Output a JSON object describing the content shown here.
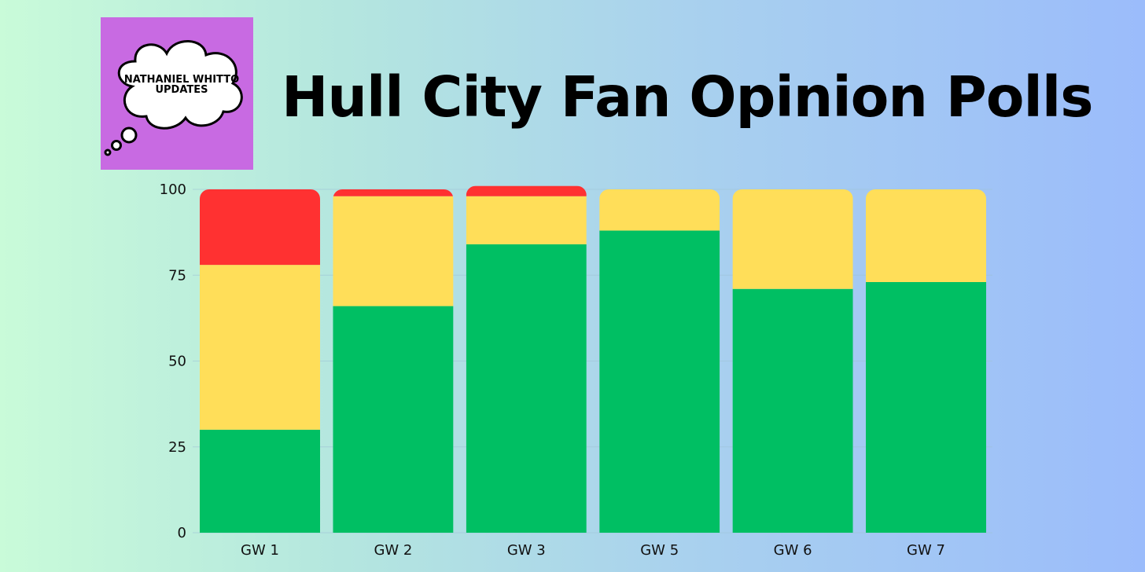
{
  "title": "Hull City Fan Opinion Polls",
  "logo": {
    "line1": "NATHANIEL WHITTO",
    "line2": "UPDATES",
    "icon": "thought-cloud-icon",
    "background_color": "#c86ae2"
  },
  "chart_data": {
    "type": "bar",
    "stacked": true,
    "categories": [
      "GW 1",
      "GW 2",
      "GW 3",
      "GW 5",
      "GW 6",
      "GW 7"
    ],
    "series": [
      {
        "color": "#00bf63",
        "values": [
          30,
          66,
          84,
          88,
          71,
          73
        ]
      },
      {
        "color": "#ffde59",
        "values": [
          48,
          32,
          14,
          12,
          29,
          27
        ]
      },
      {
        "color": "#ff3131",
        "values": [
          22,
          2,
          3,
          0,
          0,
          0
        ]
      }
    ],
    "y_ticks": [
      0,
      25,
      50,
      75,
      100
    ],
    "ylim": [
      0,
      100
    ],
    "grid": true,
    "legend": "none"
  }
}
